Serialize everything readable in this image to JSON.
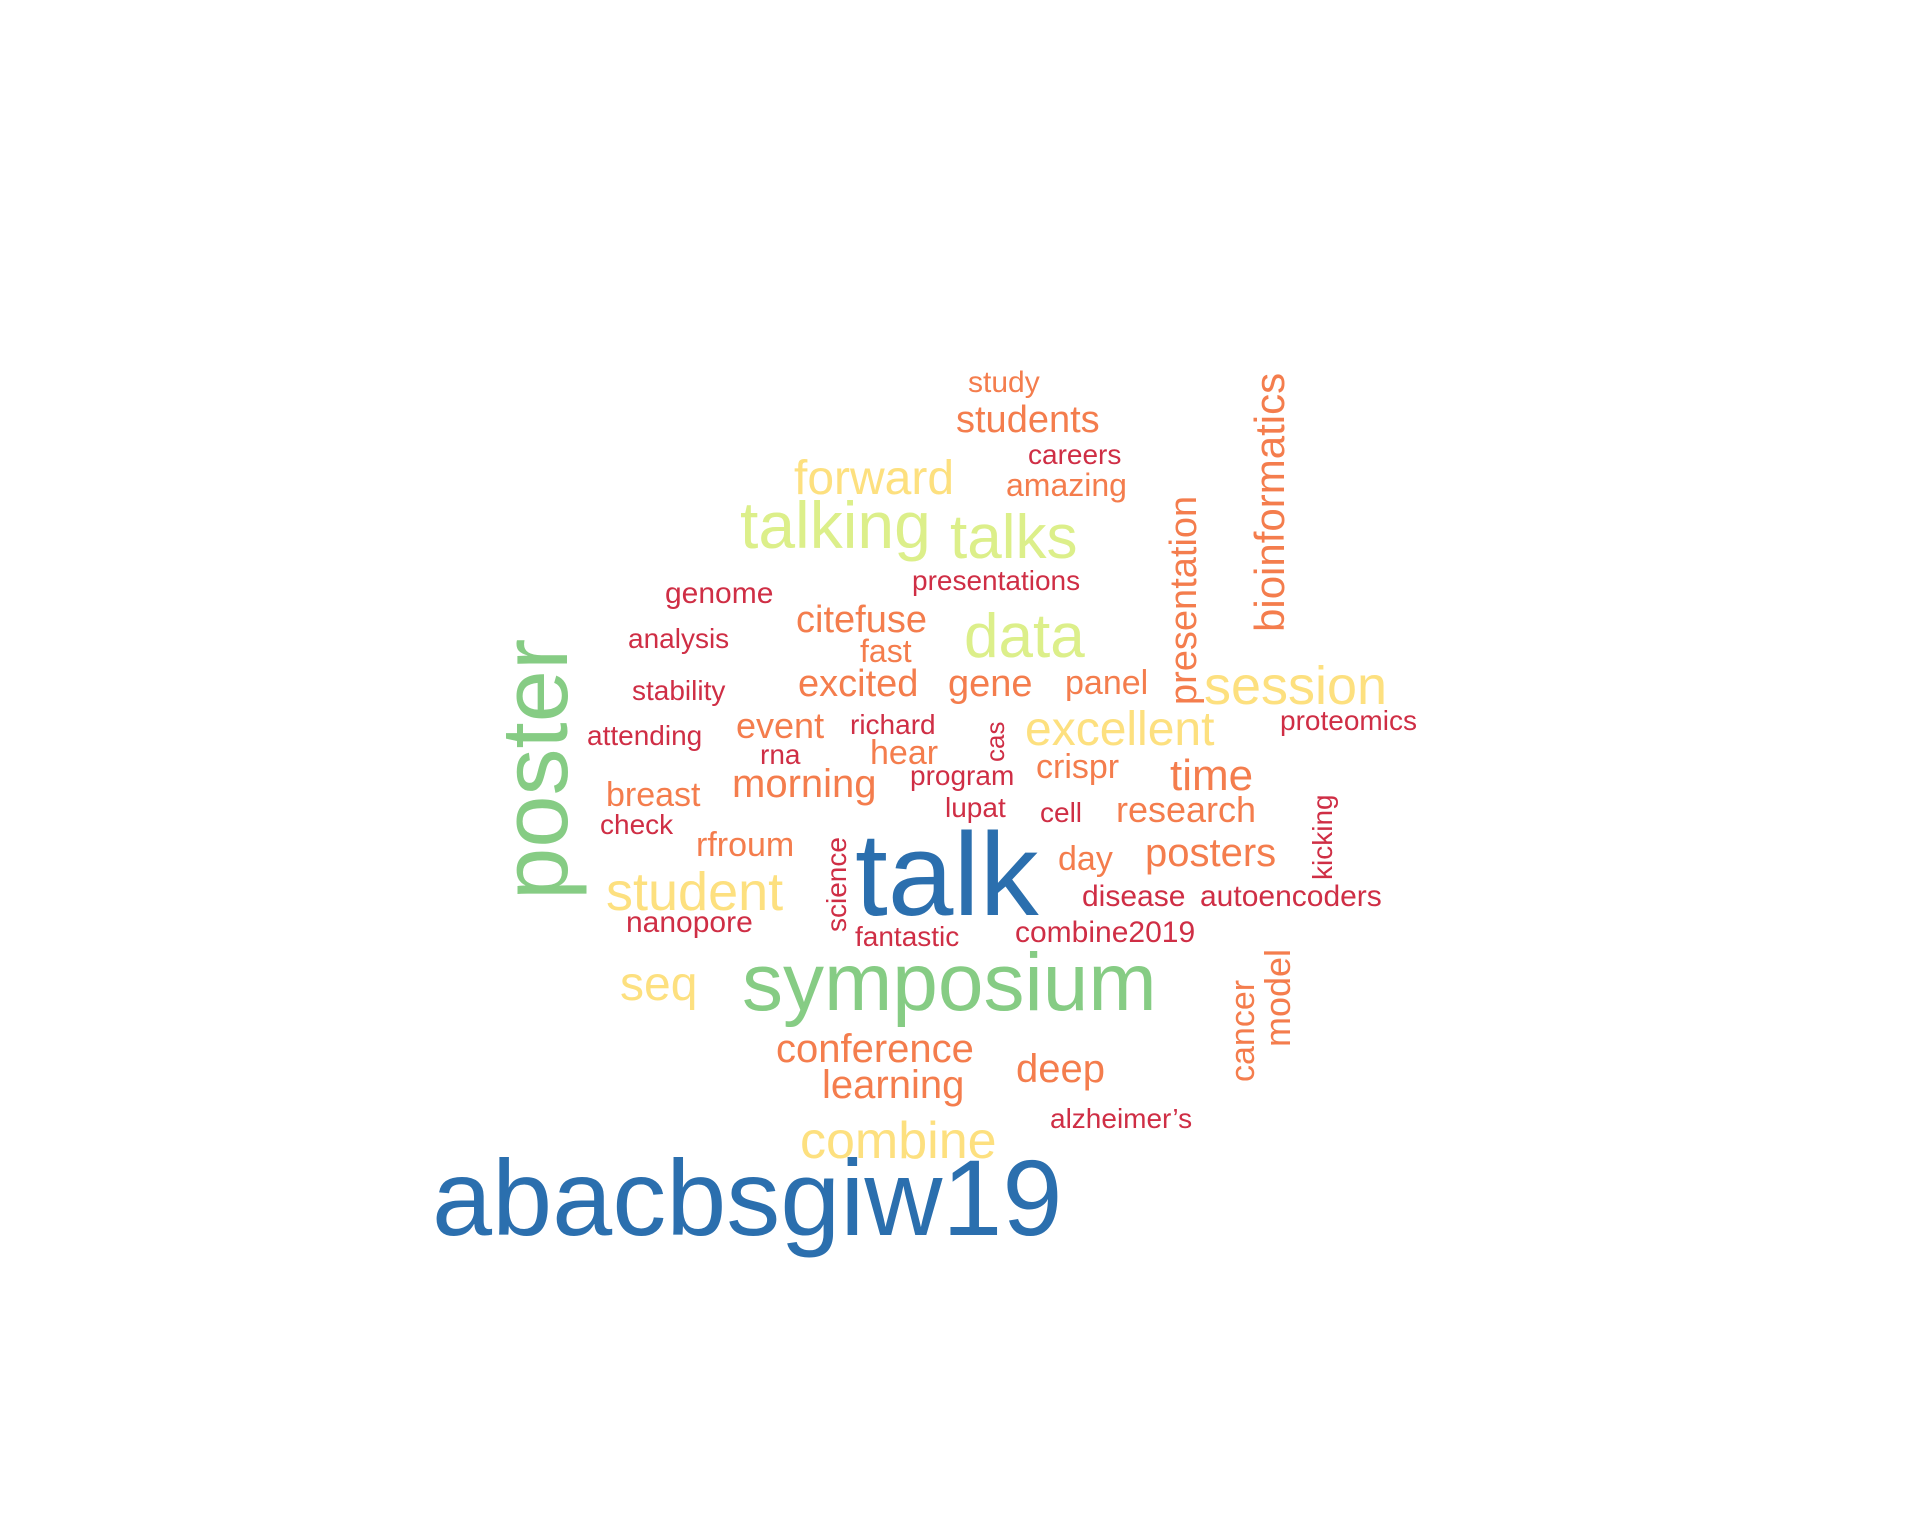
{
  "palette": {
    "blue": "#2b6fae",
    "green": "#86cc84",
    "lime": "#dcef8a",
    "yellow": "#fde07f",
    "orange": "#f47d4d",
    "red": "#cf2e45"
  },
  "words": [
    {
      "text": "abacbsgiw19",
      "color": "blue"
    },
    {
      "text": "talk",
      "color": "blue"
    },
    {
      "text": "symposium",
      "color": "green"
    },
    {
      "text": "poster",
      "color": "green"
    },
    {
      "text": "talking",
      "color": "lime"
    },
    {
      "text": "talks",
      "color": "lime"
    },
    {
      "text": "data",
      "color": "lime"
    },
    {
      "text": "student",
      "color": "yellow"
    },
    {
      "text": "combine",
      "color": "yellow"
    },
    {
      "text": "session",
      "color": "yellow"
    },
    {
      "text": "excellent",
      "color": "yellow"
    },
    {
      "text": "forward",
      "color": "yellow"
    },
    {
      "text": "seq",
      "color": "yellow"
    },
    {
      "text": "bioinformatics",
      "color": "orange"
    },
    {
      "text": "presentation",
      "color": "orange"
    },
    {
      "text": "students",
      "color": "orange"
    },
    {
      "text": "study",
      "color": "orange"
    },
    {
      "text": "amazing",
      "color": "orange"
    },
    {
      "text": "citefuse",
      "color": "orange"
    },
    {
      "text": "fast",
      "color": "orange"
    },
    {
      "text": "excited",
      "color": "orange"
    },
    {
      "text": "gene",
      "color": "orange"
    },
    {
      "text": "panel",
      "color": "orange"
    },
    {
      "text": "event",
      "color": "orange"
    },
    {
      "text": "hear",
      "color": "orange"
    },
    {
      "text": "crispr",
      "color": "orange"
    },
    {
      "text": "time",
      "color": "orange"
    },
    {
      "text": "breast",
      "color": "orange"
    },
    {
      "text": "morning",
      "color": "orange"
    },
    {
      "text": "research",
      "color": "orange"
    },
    {
      "text": "rfroum",
      "color": "orange"
    },
    {
      "text": "day",
      "color": "orange"
    },
    {
      "text": "posters",
      "color": "orange"
    },
    {
      "text": "conference",
      "color": "orange"
    },
    {
      "text": "learning",
      "color": "orange"
    },
    {
      "text": "deep",
      "color": "orange"
    },
    {
      "text": "cancer",
      "color": "orange"
    },
    {
      "text": "model",
      "color": "orange"
    },
    {
      "text": "careers",
      "color": "red"
    },
    {
      "text": "presentations",
      "color": "red"
    },
    {
      "text": "genome",
      "color": "red"
    },
    {
      "text": "analysis",
      "color": "red"
    },
    {
      "text": "stability",
      "color": "red"
    },
    {
      "text": "attending",
      "color": "red"
    },
    {
      "text": "rna",
      "color": "red"
    },
    {
      "text": "richard",
      "color": "red"
    },
    {
      "text": "cas",
      "color": "red"
    },
    {
      "text": "proteomics",
      "color": "red"
    },
    {
      "text": "program",
      "color": "red"
    },
    {
      "text": "check",
      "color": "red"
    },
    {
      "text": "lupat",
      "color": "red"
    },
    {
      "text": "cell",
      "color": "red"
    },
    {
      "text": "kicking",
      "color": "red"
    },
    {
      "text": "science",
      "color": "red"
    },
    {
      "text": "disease",
      "color": "red"
    },
    {
      "text": "autoencoders",
      "color": "red"
    },
    {
      "text": "nanopore",
      "color": "red"
    },
    {
      "text": "fantastic",
      "color": "red"
    },
    {
      "text": "combine2019",
      "color": "red"
    },
    {
      "text": "alzheimer’s",
      "color": "red"
    }
  ]
}
